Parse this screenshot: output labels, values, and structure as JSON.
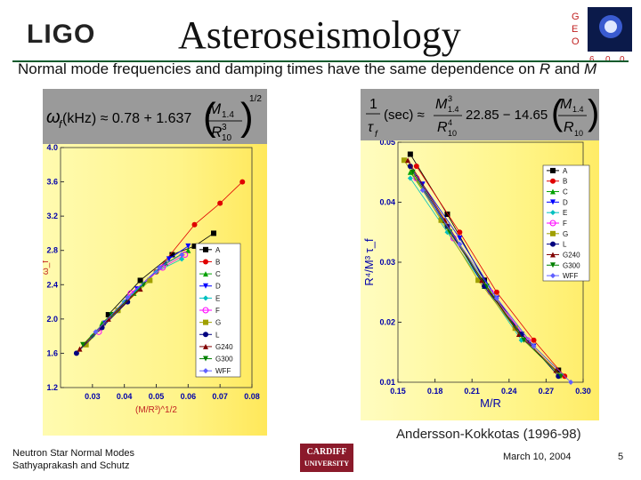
{
  "header": {
    "logo_text": "LIGO",
    "title": "Asteroseismology",
    "geo_letters": [
      "G",
      "E",
      "O",
      "6",
      "0",
      "0"
    ],
    "subtitle_pre": "Normal mode frequencies and damping times have the same dependence on ",
    "subtitle_r": "R",
    "subtitle_and": " and ",
    "subtitle_m": "M"
  },
  "formula_left": {
    "lhs": "ω",
    "lhs_sub": "f",
    "lhs_unit": " (kHz) ≈ 0.78 + 1.637",
    "num": "M",
    "num_sub": "1.4",
    "den": "R",
    "den_sup": "3",
    "den_sub": "10",
    "power": "1/2"
  },
  "formula_right": {
    "frac_num": "1",
    "frac_den": "τ",
    "frac_den_sub": "f",
    "unit": "(sec) ≈",
    "m3": "M",
    "m3_sup": "3",
    "m3_sub": "1.4",
    "r4": "R",
    "r4_sup": "4",
    "r4_sub": "10",
    "mid": "22.85 − 14.65",
    "m": "M",
    "m_sub": "1.4",
    "r": "R",
    "r_sub": "10"
  },
  "chart_data": [
    {
      "type": "scatter",
      "xlabel": "(M/R³)^1/2",
      "ylabel": "ω_f",
      "x_ticks": [
        "0.03",
        "0.04",
        "0.05",
        "0.06",
        "0.07",
        "0.08"
      ],
      "y_ticks": [
        "1.2",
        "1.6",
        "2.0",
        "2.4",
        "2.8",
        "3.2",
        "3.6",
        "4.0"
      ],
      "xlim": [
        0.02,
        0.08
      ],
      "ylim": [
        1.2,
        4.0
      ],
      "legend": [
        "A",
        "B",
        "C",
        "D",
        "E",
        "F",
        "G",
        "L",
        "G240",
        "G300",
        "WFF"
      ],
      "legend_position": "right",
      "colors": [
        "#000000",
        "#e00000",
        "#00a000",
        "#0000ff",
        "#00c0c0",
        "#ff00ff",
        "#a0a000",
        "#000080",
        "#800000",
        "#008000",
        "#6060ff"
      ],
      "series": [
        {
          "name": "A",
          "x": [
            0.035,
            0.045,
            0.055,
            0.062,
            0.068
          ],
          "y": [
            2.05,
            2.45,
            2.75,
            2.85,
            3.0
          ]
        },
        {
          "name": "B",
          "x": [
            0.038,
            0.05,
            0.062,
            0.07,
            0.077
          ],
          "y": [
            2.1,
            2.55,
            3.1,
            3.35,
            3.6
          ]
        },
        {
          "name": "C",
          "x": [
            0.033,
            0.043,
            0.053,
            0.06
          ],
          "y": [
            1.95,
            2.3,
            2.65,
            2.8
          ]
        },
        {
          "name": "D",
          "x": [
            0.034,
            0.044,
            0.054,
            0.06
          ],
          "y": [
            1.95,
            2.35,
            2.7,
            2.85
          ]
        },
        {
          "name": "E",
          "x": [
            0.03,
            0.04,
            0.05,
            0.058
          ],
          "y": [
            1.8,
            2.2,
            2.55,
            2.7
          ]
        },
        {
          "name": "F",
          "x": [
            0.032,
            0.042,
            0.052,
            0.059
          ],
          "y": [
            1.85,
            2.3,
            2.6,
            2.75
          ]
        },
        {
          "name": "G",
          "x": [
            0.028,
            0.038,
            0.048
          ],
          "y": [
            1.7,
            2.1,
            2.45
          ]
        },
        {
          "name": "L",
          "x": [
            0.025,
            0.033,
            0.041
          ],
          "y": [
            1.6,
            1.9,
            2.2
          ]
        },
        {
          "name": "G240",
          "x": [
            0.026,
            0.035,
            0.045
          ],
          "y": [
            1.65,
            2.0,
            2.35
          ]
        },
        {
          "name": "G300",
          "x": [
            0.027,
            0.036,
            0.046
          ],
          "y": [
            1.7,
            2.05,
            2.4
          ]
        },
        {
          "name": "WFF",
          "x": [
            0.031,
            0.041,
            0.051,
            0.058
          ],
          "y": [
            1.85,
            2.25,
            2.6,
            2.75
          ]
        }
      ]
    },
    {
      "type": "scatter",
      "xlabel": "M/R",
      "ylabel": "R⁴/M³ τ_f",
      "x_ticks": [
        "0.15",
        "0.18",
        "0.21",
        "0.24",
        "0.27",
        "0.30"
      ],
      "y_ticks": [
        "0.01",
        "0.02",
        "0.03",
        "0.04",
        "0.05"
      ],
      "xlim": [
        0.15,
        0.3
      ],
      "ylim": [
        0.01,
        0.05
      ],
      "legend": [
        "A",
        "B",
        "C",
        "D",
        "E",
        "F",
        "G",
        "L",
        "G240",
        "G300",
        "WFF"
      ],
      "legend_position": "top-right",
      "colors": [
        "#000000",
        "#e00000",
        "#00a000",
        "#0000ff",
        "#00c0c0",
        "#ff00ff",
        "#a0a000",
        "#000080",
        "#800000",
        "#008000",
        "#6060ff"
      ],
      "series": [
        {
          "name": "A",
          "x": [
            0.16,
            0.19,
            0.22,
            0.25,
            0.28
          ],
          "y": [
            0.048,
            0.038,
            0.027,
            0.018,
            0.012
          ]
        },
        {
          "name": "B",
          "x": [
            0.165,
            0.2,
            0.23,
            0.26,
            0.285
          ],
          "y": [
            0.046,
            0.035,
            0.025,
            0.017,
            0.011
          ]
        },
        {
          "name": "C",
          "x": [
            0.16,
            0.19,
            0.22,
            0.25
          ],
          "y": [
            0.045,
            0.036,
            0.026,
            0.018
          ]
        },
        {
          "name": "D",
          "x": [
            0.17,
            0.2,
            0.23,
            0.26
          ],
          "y": [
            0.043,
            0.034,
            0.024,
            0.016
          ]
        },
        {
          "name": "E",
          "x": [
            0.16,
            0.19,
            0.22,
            0.25
          ],
          "y": [
            0.044,
            0.035,
            0.026,
            0.017
          ]
        },
        {
          "name": "F",
          "x": [
            0.165,
            0.195,
            0.225,
            0.255
          ],
          "y": [
            0.044,
            0.034,
            0.025,
            0.017
          ]
        },
        {
          "name": "G",
          "x": [
            0.155,
            0.185,
            0.215,
            0.245
          ],
          "y": [
            0.047,
            0.037,
            0.027,
            0.019
          ]
        },
        {
          "name": "L",
          "x": [
            0.16,
            0.19,
            0.22,
            0.25,
            0.28
          ],
          "y": [
            0.046,
            0.036,
            0.026,
            0.018,
            0.011
          ]
        },
        {
          "name": "G240",
          "x": [
            0.158,
            0.188,
            0.218,
            0.248,
            0.278
          ],
          "y": [
            0.047,
            0.037,
            0.027,
            0.018,
            0.012
          ]
        },
        {
          "name": "G300",
          "x": [
            0.162,
            0.192,
            0.222,
            0.252,
            0.282
          ],
          "y": [
            0.045,
            0.035,
            0.026,
            0.017,
            0.011
          ]
        },
        {
          "name": "WFF",
          "x": [
            0.17,
            0.2,
            0.23,
            0.26,
            0.29
          ],
          "y": [
            0.042,
            0.033,
            0.024,
            0.016,
            0.01
          ]
        }
      ]
    }
  ],
  "credit": "Andersson-Kokkotas (1996-98)",
  "footer": {
    "line1": "Neutron Star Normal Modes",
    "line2": "Sathyaprakash and Schutz",
    "university_line1": "CARDIFF",
    "university_line2": "UNIVERSITY",
    "date": "March 10, 2004",
    "page": "5"
  }
}
